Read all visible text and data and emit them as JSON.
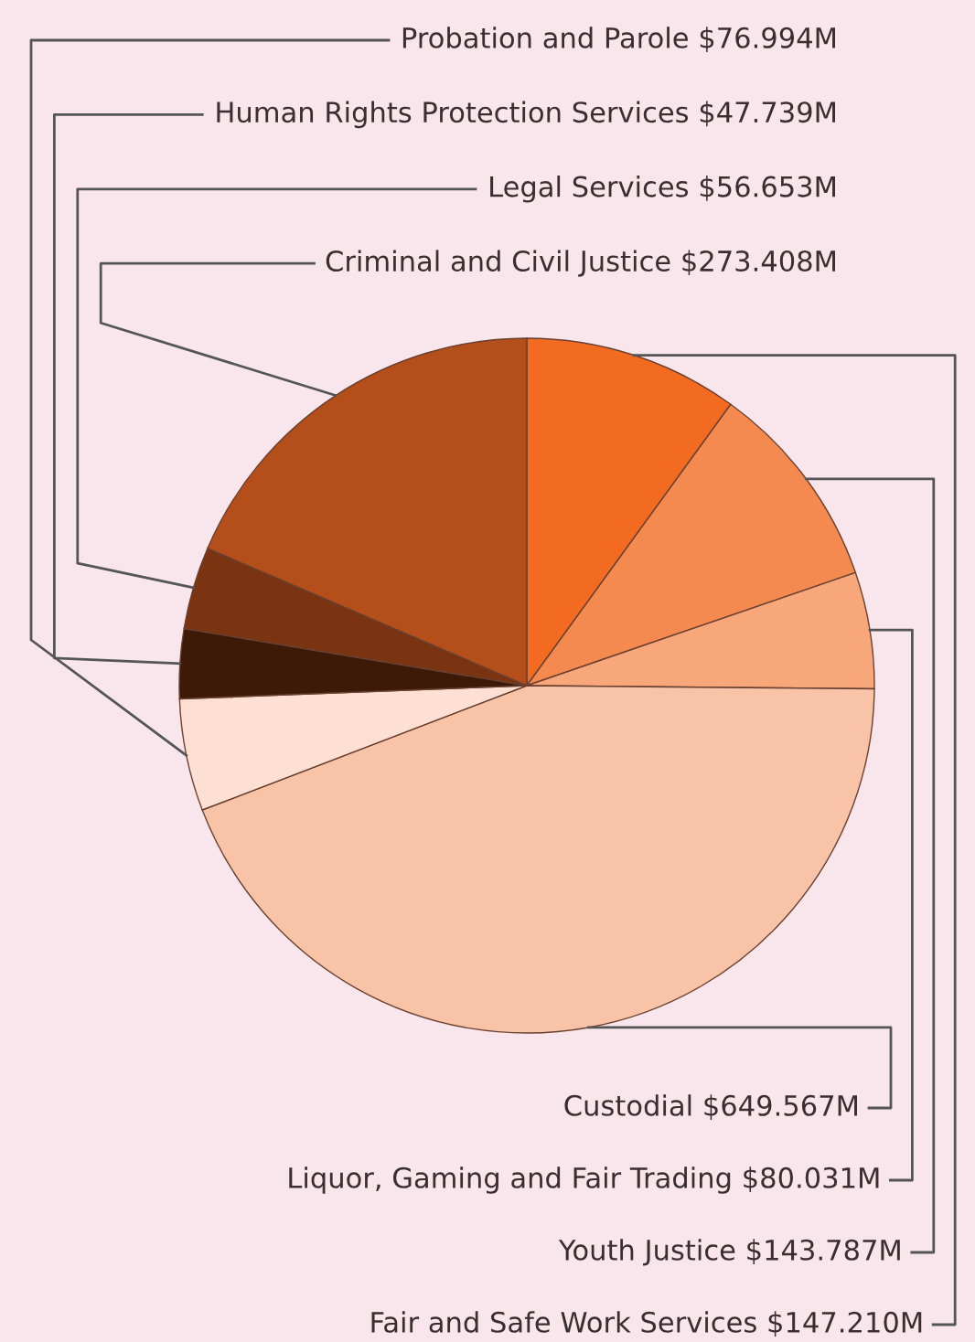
{
  "chart_data": {
    "type": "pie",
    "categories": [
      "Fair and Safe Work Services",
      "Youth Justice",
      "Liquor, Gaming and Fair Trading",
      "Custodial",
      "Probation and Parole",
      "Human Rights Protection Services",
      "Legal Services",
      "Criminal and Civil Justice"
    ],
    "values": [
      147.21,
      143.787,
      80.031,
      649.567,
      76.994,
      47.739,
      56.653,
      273.408
    ],
    "value_labels": [
      "$147.210M",
      "$143.787M",
      "$80.031M",
      "$649.567M",
      "$76.994M",
      "$47.739M",
      "$56.653M",
      "$273.408M"
    ],
    "colors": [
      "#f26b21",
      "#f58a50",
      "#f7a77a",
      "#f9c3a8",
      "#fde0d3",
      "#3d1a07",
      "#7a3411",
      "#b44e1a"
    ]
  }
}
